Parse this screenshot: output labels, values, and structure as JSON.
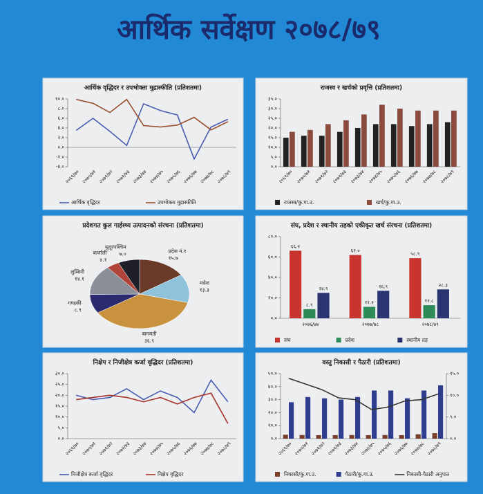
{
  "title": "आर्थिक सर्वेक्षण २०७८/७९",
  "chart_data": [
    {
      "type": "line",
      "title": "आर्थिक वृद्धिदर र उपभोक्ता मुद्रास्फीति (प्रतिशतमा)",
      "categories": [
        "२०६९/७०",
        "२०७०/७१",
        "२०७१/७२",
        "२०७२/७३",
        "२०७३/७४",
        "२०७४/७५",
        "२०७५/७६",
        "२०७६/७७",
        "२०७७/७८",
        "२०७८/७९"
      ],
      "series": [
        {
          "name": "आर्थिक वृद्धिदर",
          "color": "#4a5bb0",
          "values": [
            3.5,
            6.0,
            3.3,
            0.4,
            9.0,
            7.6,
            6.7,
            -2.4,
            4.2,
            5.8
          ]
        },
        {
          "name": "उपभोक्ता मुद्रास्फीति",
          "color": "#9a4e2c",
          "values": [
            9.9,
            9.1,
            7.2,
            9.9,
            4.5,
            4.2,
            4.6,
            6.2,
            3.6,
            5.3
          ]
        }
      ],
      "ylim": [
        -4,
        10
      ],
      "yticks": [
        {
          "value": -4,
          "label": "-४.०"
        },
        {
          "value": -2,
          "label": "-२.०"
        },
        {
          "value": 0,
          "label": "०.०"
        },
        {
          "value": 2,
          "label": "२.०"
        },
        {
          "value": 4,
          "label": "४.०"
        },
        {
          "value": 6,
          "label": "६.०"
        },
        {
          "value": 8,
          "label": "८.०"
        },
        {
          "value": 10,
          "label": "१०.०"
        }
      ]
    },
    {
      "type": "bar",
      "title": "राजस्व र खर्चको प्रवृत्ति (प्रतिशतमा)",
      "categories": [
        "२०६९/७०",
        "२०७०/७१",
        "२०७१/७२",
        "२०७२/७३",
        "२०७३/७४",
        "२०७४/७५",
        "२०७५/७६",
        "२०७६/७७",
        "२०७७/७८",
        "२०७८/७९"
      ],
      "series": [
        {
          "name": "राजस्व/कु.गा.उ.",
          "color": "#222222",
          "values": [
            15,
            16,
            16,
            18,
            20,
            22,
            22,
            21,
            22,
            23
          ]
        },
        {
          "name": "खर्च/कु.गा.उ.",
          "color": "#8a4a3c",
          "values": [
            18,
            19,
            22,
            24,
            27,
            32,
            30,
            29,
            29,
            29
          ]
        }
      ],
      "ylim": [
        0,
        35
      ],
      "yticks": [
        {
          "value": 0,
          "label": "०.०"
        },
        {
          "value": 5,
          "label": "५.०"
        },
        {
          "value": 10,
          "label": "१०.०"
        },
        {
          "value": 15,
          "label": "१५.०"
        },
        {
          "value": 20,
          "label": "२०.०"
        },
        {
          "value": 25,
          "label": "२५.०"
        },
        {
          "value": 30,
          "label": "३०.०"
        },
        {
          "value": 35,
          "label": "३५.०"
        }
      ]
    },
    {
      "type": "pie",
      "title": "प्रदेशगत कुल गार्हस्थ्य उत्पादनको संरचना (प्रतिशतमा)",
      "categories": [
        "प्रदेश नं.१",
        "मधेश",
        "बागमती",
        "गण्डकी",
        "लुम्बिनी",
        "कर्णाली",
        "सुदूरपश्चिम"
      ],
      "values": [
        15.7,
        13.3,
        36.9,
        8.9,
        14.1,
        4.1,
        7.0
      ],
      "value_labels": [
        "१५.७",
        "१३.३",
        "३६.९",
        "८.९",
        "१४.१",
        "४.१",
        "७.०"
      ],
      "colors": [
        "#6b3b2a",
        "#8fc3dc",
        "#c9923e",
        "#2c2a6e",
        "#8a8f99",
        "#b0443a",
        "#1f1f2a"
      ]
    },
    {
      "type": "bar",
      "title": "संघ, प्रदेश र स्थानीय तहको एकीकृत खर्च संरचना (प्रतिशतमा)",
      "categories": [
        "२०७६/७७",
        "२०७७/७८",
        "२०७८/७९"
      ],
      "series": [
        {
          "name": "संघ",
          "color": "#c9352e",
          "values": [
            66.2,
            62.0,
            58.9
          ],
          "value_labels": [
            "६६.२",
            "६२.०",
            "५८.९"
          ]
        },
        {
          "name": "प्रदेश",
          "color": "#2e8b57",
          "values": [
            8.9,
            11.2,
            12.8
          ],
          "value_labels": [
            "८.९",
            "११.२",
            "१२.८"
          ]
        },
        {
          "name": "स्थानीय तह",
          "color": "#2a3470",
          "values": [
            24.9,
            26.9,
            28.3
          ],
          "value_labels": [
            "२४.९",
            "२६.९",
            "२८.३"
          ]
        }
      ],
      "ylim": [
        0,
        80
      ],
      "yticks": [
        {
          "value": 0,
          "label": "०.०"
        },
        {
          "value": 20,
          "label": "२०.०"
        },
        {
          "value": 40,
          "label": "४०.०"
        },
        {
          "value": 60,
          "label": "६०.०"
        },
        {
          "value": 80,
          "label": "८०.०"
        }
      ]
    },
    {
      "type": "line",
      "title": "निक्षेप र निजीक्षेत्र कर्जा वृद्धिदर (प्रतिशतमा)",
      "categories": [
        "२०६९/७०",
        "२०७०/७१",
        "२०७१/७२",
        "२०७२/७३",
        "२०७३/७४",
        "२०७४/७५",
        "२०७५/७६",
        "२०७६/७७",
        "२०७७/७८",
        "२०७८/७९"
      ],
      "series": [
        {
          "name": "निजीक्षेत्र कर्जा वृद्धिदर",
          "color": "#4a5bb0",
          "values": [
            20,
            18,
            19,
            23,
            18,
            22,
            19,
            12,
            27,
            17
          ]
        },
        {
          "name": "निक्षेप वृद्धिदर",
          "color": "#a8322c",
          "values": [
            18,
            19,
            20,
            19,
            17,
            19,
            16,
            19,
            21,
            7
          ]
        }
      ],
      "ylim": [
        0,
        30
      ],
      "yticks": [
        {
          "value": 0,
          "label": "०.०"
        },
        {
          "value": 5,
          "label": "५.०"
        },
        {
          "value": 10,
          "label": "१०.०"
        },
        {
          "value": 15,
          "label": "१५.०"
        },
        {
          "value": 20,
          "label": "२०.०"
        },
        {
          "value": 25,
          "label": "२५.०"
        },
        {
          "value": 30,
          "label": "३०.०"
        }
      ]
    },
    {
      "type": "bar",
      "title": "वस्तु निकासी र पैठारी (प्रतिशतमा)",
      "categories": [
        "२०६९/७०",
        "२०७०/७१",
        "२०७१/७२",
        "२०७२/७३",
        "२०७३/७४",
        "२०७४/७५",
        "२०७५/७६",
        "२०७६/७७",
        "२०७७/७८",
        "२०७८/७९"
      ],
      "series": [
        {
          "name": "निकासी/कु.गा.उ.",
          "color": "#7a3e2a",
          "values": [
            3.0,
            2.8,
            2.7,
            2.7,
            2.8,
            2.7,
            2.8,
            2.7,
            3.4,
            4.2
          ]
        },
        {
          "name": "पैठारी/कु.गा.उ.",
          "color": "#2f3d8f",
          "values": [
            28,
            32,
            31,
            30,
            32,
            37,
            37,
            31,
            37,
            41
          ]
        },
        {
          "name": "निकासी-पैठारी अनुपात",
          "color": "#333333",
          "type": "line",
          "axis": "y2",
          "values": [
            13.9,
            12.6,
            11.3,
            9.4,
            9.0,
            6.7,
            7.3,
            8.7,
            9.0,
            10.3
          ]
        }
      ],
      "ylim": [
        0,
        50
      ],
      "yticks": [
        {
          "value": 0,
          "label": "०.०"
        },
        {
          "value": 10,
          "label": "१०.०"
        },
        {
          "value": 20,
          "label": "२०.०"
        },
        {
          "value": 30,
          "label": "३०.०"
        },
        {
          "value": 40,
          "label": "४०.०"
        },
        {
          "value": 50,
          "label": "५०.०"
        }
      ],
      "y2lim": [
        0,
        15
      ],
      "y2ticks": [
        {
          "value": 0,
          "label": "०.०"
        },
        {
          "value": 5,
          "label": "५.०"
        },
        {
          "value": 10,
          "label": "१०.०"
        },
        {
          "value": 15,
          "label": "१५.०"
        }
      ]
    }
  ]
}
